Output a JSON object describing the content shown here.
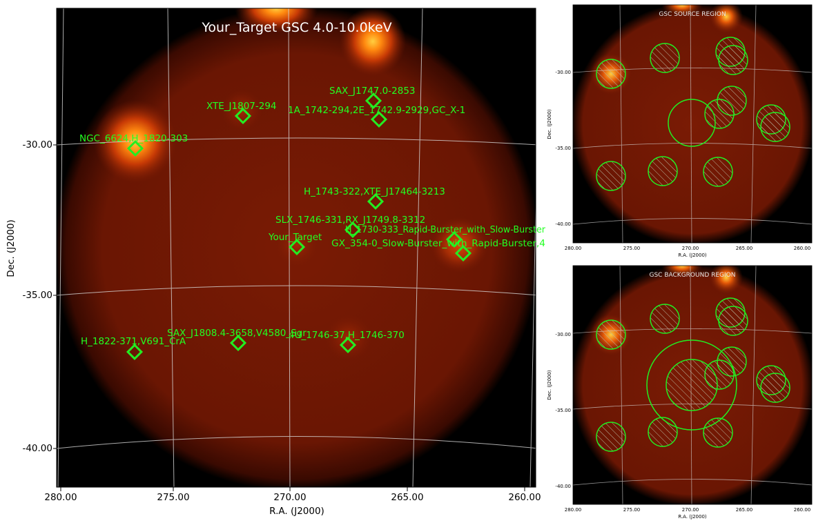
{
  "colors": {
    "background": "#000000",
    "sky_glow": "#8a1f05",
    "bright_source": "#ffb020",
    "marker": "#22ff22",
    "grid": "#d8d8d8",
    "title_text": "#ffffff"
  },
  "main_panel": {
    "title": "Your_Target GSC 4.0-10.0keV",
    "xlabel": "R.A. (J2000)",
    "ylabel": "Dec. (J2000)",
    "x_ticks": [
      "280.00",
      "275.00",
      "270.00",
      "265.00",
      "260.00"
    ],
    "y_ticks": [
      "-30.00",
      "-35.00",
      "-40.00"
    ],
    "source_labels": [
      "SAX_J1747.0-2853",
      "XTE_J1807-294",
      "1A_1742-294,2E_1742.9-2929,GC_X-1",
      "NGC_6624,H_1820-303",
      "H_1743-322,XTE_J17464-3213",
      "SLX_1746-331,RX_J1749.8-3312",
      "H_1730-333_Rapid-Burster_with_Slow-Burster",
      "Your_Target",
      "GX_354-0_Slow-Burster_with_Rapid-Burster,4",
      "SAX_J1808.4-3658,V4580_Sgr",
      "4U_1746-37,H_1746-370",
      "H_1822-371,V691_CrA"
    ]
  },
  "source_panel": {
    "title": "GSC SOURCE REGION",
    "xlabel": "R.A. (J2000)",
    "ylabel": "Dec. (J2000)",
    "x_ticks": [
      "280.00",
      "275.00",
      "270.00",
      "265.00",
      "260.00"
    ],
    "y_ticks": [
      "-30.00",
      "-35.00",
      "-40.00"
    ]
  },
  "background_panel": {
    "title": "GSC BACKGROUND REGION",
    "xlabel": "R.A. (J2000)",
    "ylabel": "Dec. (J2000)",
    "x_ticks": [
      "280.00",
      "275.00",
      "270.00",
      "265.00",
      "260.00"
    ],
    "y_ticks": [
      "-30.00",
      "-35.00",
      "-40.00"
    ]
  }
}
